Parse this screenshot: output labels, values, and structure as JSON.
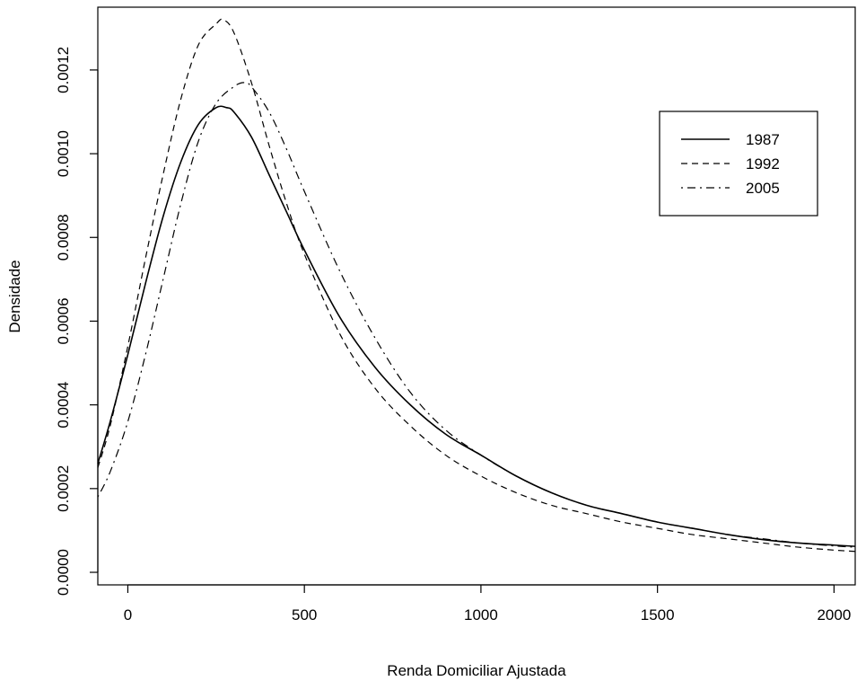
{
  "chart_data": {
    "type": "line",
    "xlabel": "Renda Domiciliar Ajustada",
    "ylabel": "Densidade",
    "xlim": [
      -85,
      2060
    ],
    "ylim": [
      -3e-05,
      0.00135
    ],
    "xticks": [
      0,
      500,
      1000,
      1500,
      2000
    ],
    "xtick_labels": [
      "0",
      "500",
      "1000",
      "1500",
      "2000"
    ],
    "yticks": [
      0,
      0.0002,
      0.0004,
      0.0006,
      0.0008,
      0.001,
      0.0012
    ],
    "ytick_labels": [
      "0.0000",
      "0.0002",
      "0.0004",
      "0.0006",
      "0.0008",
      "0.0010",
      "0.0012"
    ],
    "grid": false,
    "legend_position": "top-right",
    "series": [
      {
        "name": "1987",
        "line_style": "solid",
        "x": [
          -85,
          -50,
          0,
          50,
          100,
          150,
          200,
          250,
          280,
          300,
          350,
          400,
          450,
          500,
          600,
          700,
          800,
          900,
          1000,
          1100,
          1200,
          1300,
          1400,
          1500,
          1600,
          1700,
          1800,
          1900,
          2000,
          2060
        ],
        "y": [
          0.00026,
          0.00036,
          0.00052,
          0.00069,
          0.00085,
          0.00098,
          0.00107,
          0.00111,
          0.00111,
          0.0011,
          0.00104,
          0.00095,
          0.00086,
          0.00077,
          0.00061,
          0.00049,
          0.0004,
          0.00033,
          0.00028,
          0.00023,
          0.00019,
          0.00016,
          0.00014,
          0.00012,
          0.000105,
          9e-05,
          7.8e-05,
          7e-05,
          6.5e-05,
          6.2e-05
        ]
      },
      {
        "name": "1992",
        "line_style": "dashed",
        "x": [
          -85,
          -50,
          0,
          50,
          100,
          150,
          200,
          250,
          270,
          300,
          350,
          400,
          450,
          500,
          600,
          700,
          800,
          900,
          1000,
          1100,
          1200,
          1300,
          1400,
          1500,
          1600,
          1700,
          1800,
          1900,
          2000,
          2060
        ],
        "y": [
          0.00025,
          0.00035,
          0.00054,
          0.00075,
          0.00095,
          0.00113,
          0.00126,
          0.00131,
          0.00132,
          0.00129,
          0.00117,
          0.00102,
          0.00088,
          0.00076,
          0.00057,
          0.00044,
          0.00035,
          0.00028,
          0.00023,
          0.00019,
          0.00016,
          0.00014,
          0.00012,
          0.000105,
          9e-05,
          8e-05,
          7e-05,
          6e-05,
          5.3e-05,
          5e-05
        ]
      },
      {
        "name": "2005",
        "line_style": "dotdash",
        "x": [
          -85,
          -50,
          0,
          50,
          100,
          150,
          200,
          250,
          300,
          330,
          350,
          400,
          450,
          500,
          600,
          700,
          800,
          900,
          1000,
          1100,
          1200,
          1300,
          1400,
          1500,
          1600,
          1700,
          1800,
          1900,
          2000,
          2060
        ],
        "y": [
          0.00018,
          0.00024,
          0.00036,
          0.00052,
          0.0007,
          0.00088,
          0.00103,
          0.00112,
          0.00116,
          0.00117,
          0.00116,
          0.0011,
          0.00101,
          0.00091,
          0.00072,
          0.00056,
          0.00043,
          0.00034,
          0.00028,
          0.00023,
          0.00019,
          0.00016,
          0.00014,
          0.00012,
          0.000105,
          9e-05,
          8e-05,
          7e-05,
          6.3e-05,
          6e-05
        ]
      }
    ]
  }
}
